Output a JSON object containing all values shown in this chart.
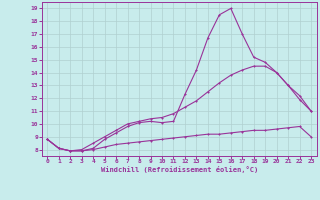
{
  "xlabel": "Windchill (Refroidissement éolien,°C)",
  "bg_color": "#c8ecec",
  "grid_color": "#b0d0d0",
  "line_color": "#993399",
  "xlim": [
    -0.5,
    23.5
  ],
  "ylim": [
    7.5,
    19.5
  ],
  "xticks": [
    0,
    1,
    2,
    3,
    4,
    5,
    6,
    7,
    8,
    9,
    10,
    11,
    12,
    13,
    14,
    15,
    16,
    17,
    18,
    19,
    20,
    21,
    22,
    23
  ],
  "yticks": [
    8,
    9,
    10,
    11,
    12,
    13,
    14,
    15,
    16,
    17,
    18,
    19
  ],
  "line1_x": [
    0,
    1,
    2,
    3,
    4,
    5,
    6,
    7,
    8,
    9,
    10,
    11,
    12,
    13,
    14,
    15,
    16,
    17,
    18,
    19,
    20,
    21,
    22,
    23
  ],
  "line1_y": [
    8.8,
    8.1,
    7.9,
    7.9,
    8.1,
    8.8,
    9.3,
    9.8,
    10.1,
    10.2,
    10.1,
    10.2,
    12.3,
    14.2,
    16.7,
    18.5,
    19.0,
    17.0,
    15.2,
    14.8,
    14.0,
    13.0,
    11.9,
    11.0
  ],
  "line2_x": [
    0,
    1,
    2,
    3,
    4,
    5,
    6,
    7,
    8,
    9,
    10,
    11,
    12,
    13,
    14,
    15,
    16,
    17,
    18,
    19,
    20,
    21,
    22,
    23
  ],
  "line2_y": [
    8.8,
    8.1,
    7.9,
    8.0,
    8.5,
    9.0,
    9.5,
    10.0,
    10.2,
    10.4,
    10.5,
    10.8,
    11.3,
    11.8,
    12.5,
    13.2,
    13.8,
    14.2,
    14.5,
    14.5,
    14.0,
    13.0,
    12.2,
    11.0
  ],
  "line3_x": [
    0,
    1,
    2,
    3,
    4,
    5,
    6,
    7,
    8,
    9,
    10,
    11,
    12,
    13,
    14,
    15,
    16,
    17,
    18,
    19,
    20,
    21,
    22,
    23
  ],
  "line3_y": [
    8.8,
    8.1,
    7.9,
    7.9,
    8.0,
    8.2,
    8.4,
    8.5,
    8.6,
    8.7,
    8.8,
    8.9,
    9.0,
    9.1,
    9.2,
    9.2,
    9.3,
    9.4,
    9.5,
    9.5,
    9.6,
    9.7,
    9.8,
    9.0
  ]
}
